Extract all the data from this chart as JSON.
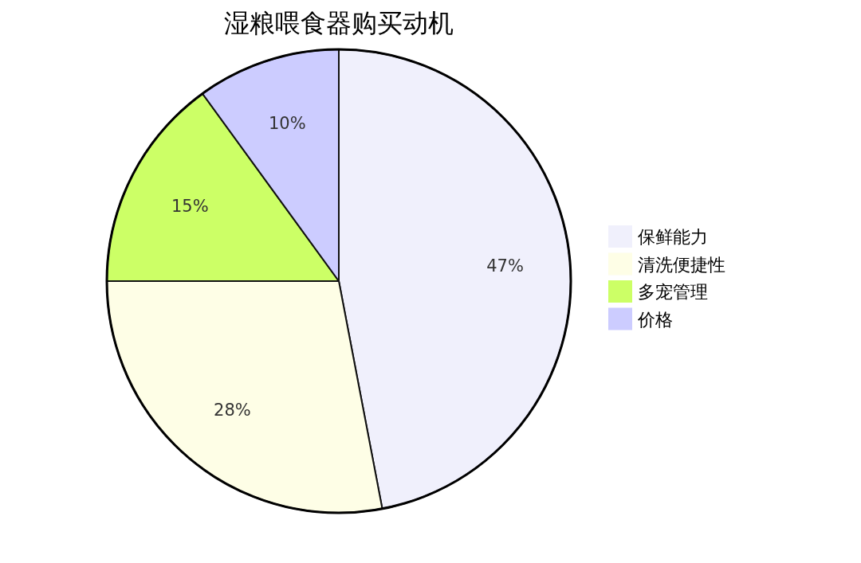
{
  "chart_data": {
    "type": "pie",
    "title": "湿粮喂食器购买动机",
    "categories": [
      "保鲜能力",
      "清洗便捷性",
      "多宠管理",
      "价格"
    ],
    "values": [
      47,
      28,
      15,
      10
    ],
    "colors": [
      "#f0f0fc",
      "#fefee6",
      "#ccff66",
      "#ccccff"
    ],
    "value_labels": [
      "47%",
      "28%",
      "15%",
      "10%"
    ],
    "legend": "right"
  }
}
